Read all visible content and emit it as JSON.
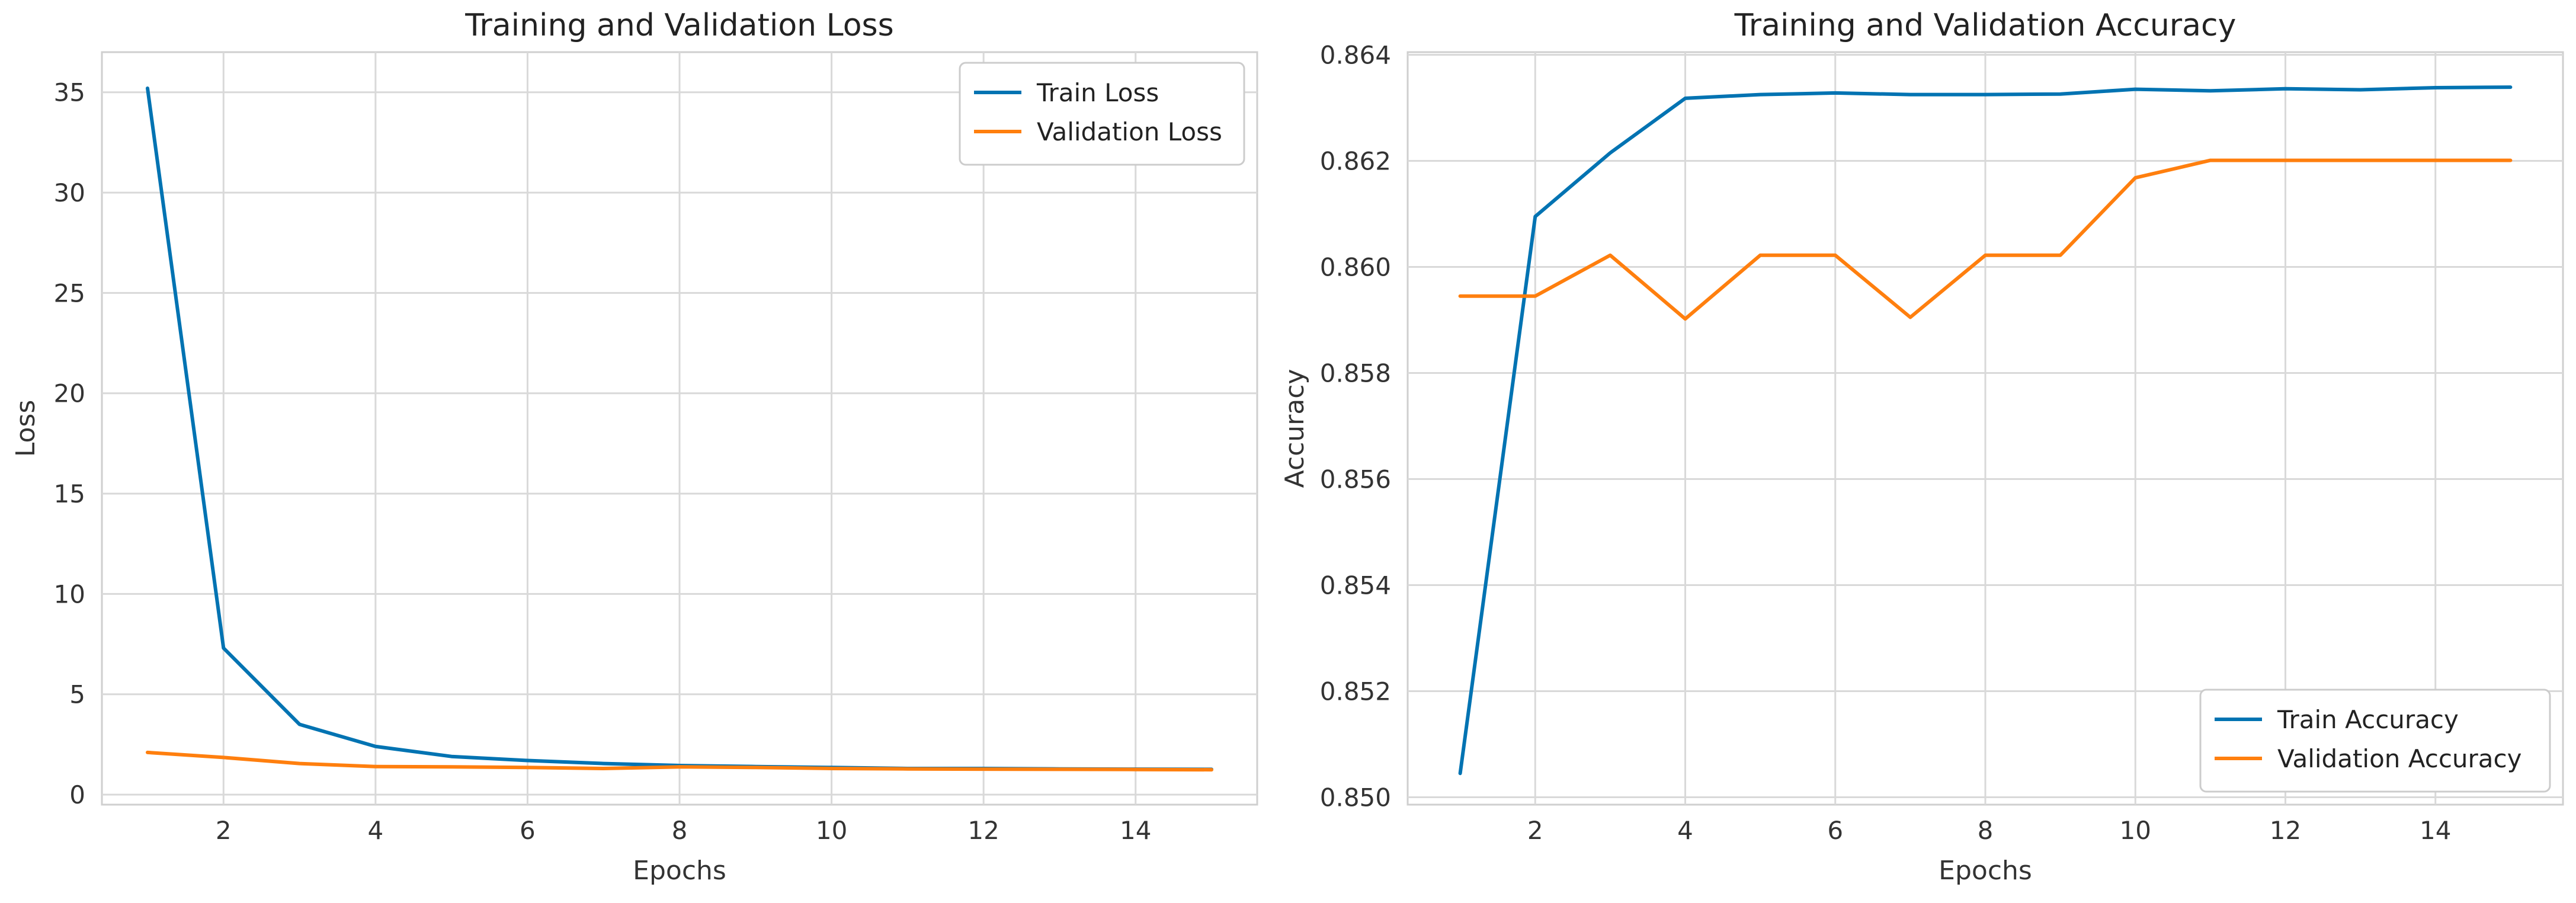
{
  "colors": {
    "train": "#0173b2",
    "validation": "#ff7f0e"
  },
  "chart_data": [
    {
      "type": "line",
      "title": "Training and Validation Loss",
      "xlabel": "Epochs",
      "ylabel": "Loss",
      "x": [
        1,
        2,
        3,
        4,
        5,
        6,
        7,
        8,
        9,
        10,
        11,
        12,
        13,
        14,
        15
      ],
      "xlim": [
        0.4,
        15.6
      ],
      "ylim": [
        -0.5,
        37
      ],
      "xticks": [
        2,
        4,
        6,
        8,
        10,
        12,
        14
      ],
      "xtick_labels": [
        "2",
        "4",
        "6",
        "8",
        "10",
        "12",
        "14"
      ],
      "yticks": [
        0,
        5,
        10,
        15,
        20,
        25,
        30,
        35
      ],
      "ytick_labels": [
        "0",
        "5",
        "10",
        "15",
        "20",
        "25",
        "30",
        "35"
      ],
      "grid": true,
      "legend": "top-right",
      "series": [
        {
          "name": "Train Loss",
          "color": "#0173b2",
          "values": [
            35.2,
            7.3,
            3.5,
            2.4,
            1.9,
            1.7,
            1.55,
            1.45,
            1.4,
            1.35,
            1.3,
            1.3,
            1.28,
            1.27,
            1.26
          ]
        },
        {
          "name": "Validation Loss",
          "color": "#ff7f0e",
          "values": [
            2.1,
            1.85,
            1.55,
            1.4,
            1.38,
            1.35,
            1.3,
            1.38,
            1.35,
            1.3,
            1.28,
            1.27,
            1.26,
            1.25,
            1.24
          ]
        }
      ]
    },
    {
      "type": "line",
      "title": "Training and Validation Accuracy",
      "xlabel": "Epochs",
      "ylabel": "Accuracy",
      "x": [
        1,
        2,
        3,
        4,
        5,
        6,
        7,
        8,
        9,
        10,
        11,
        12,
        13,
        14,
        15
      ],
      "xlim": [
        0.3,
        15.7
      ],
      "ylim": [
        0.84986,
        0.86405
      ],
      "xticks": [
        2,
        4,
        6,
        8,
        10,
        12,
        14
      ],
      "xtick_labels": [
        "2",
        "4",
        "6",
        "8",
        "10",
        "12",
        "14"
      ],
      "yticks": [
        0.85,
        0.852,
        0.854,
        0.856,
        0.858,
        0.86,
        0.862,
        0.864
      ],
      "ytick_labels": [
        "0.850",
        "0.852",
        "0.854",
        "0.856",
        "0.858",
        "0.860",
        "0.862",
        "0.864"
      ],
      "grid": true,
      "legend": "bottom-right",
      "series": [
        {
          "name": "Train Accuracy",
          "color": "#0173b2",
          "values": [
            0.85045,
            0.86095,
            0.86215,
            0.86318,
            0.86325,
            0.86328,
            0.86325,
            0.86325,
            0.86326,
            0.86335,
            0.86332,
            0.86336,
            0.86334,
            0.86338,
            0.86339
          ]
        },
        {
          "name": "Validation Accuracy",
          "color": "#ff7f0e",
          "values": [
            0.85945,
            0.85945,
            0.86022,
            0.85902,
            0.86022,
            0.86022,
            0.85905,
            0.86022,
            0.86022,
            0.86168,
            0.86201,
            0.86201,
            0.86201,
            0.86201,
            0.86201
          ]
        }
      ]
    }
  ]
}
